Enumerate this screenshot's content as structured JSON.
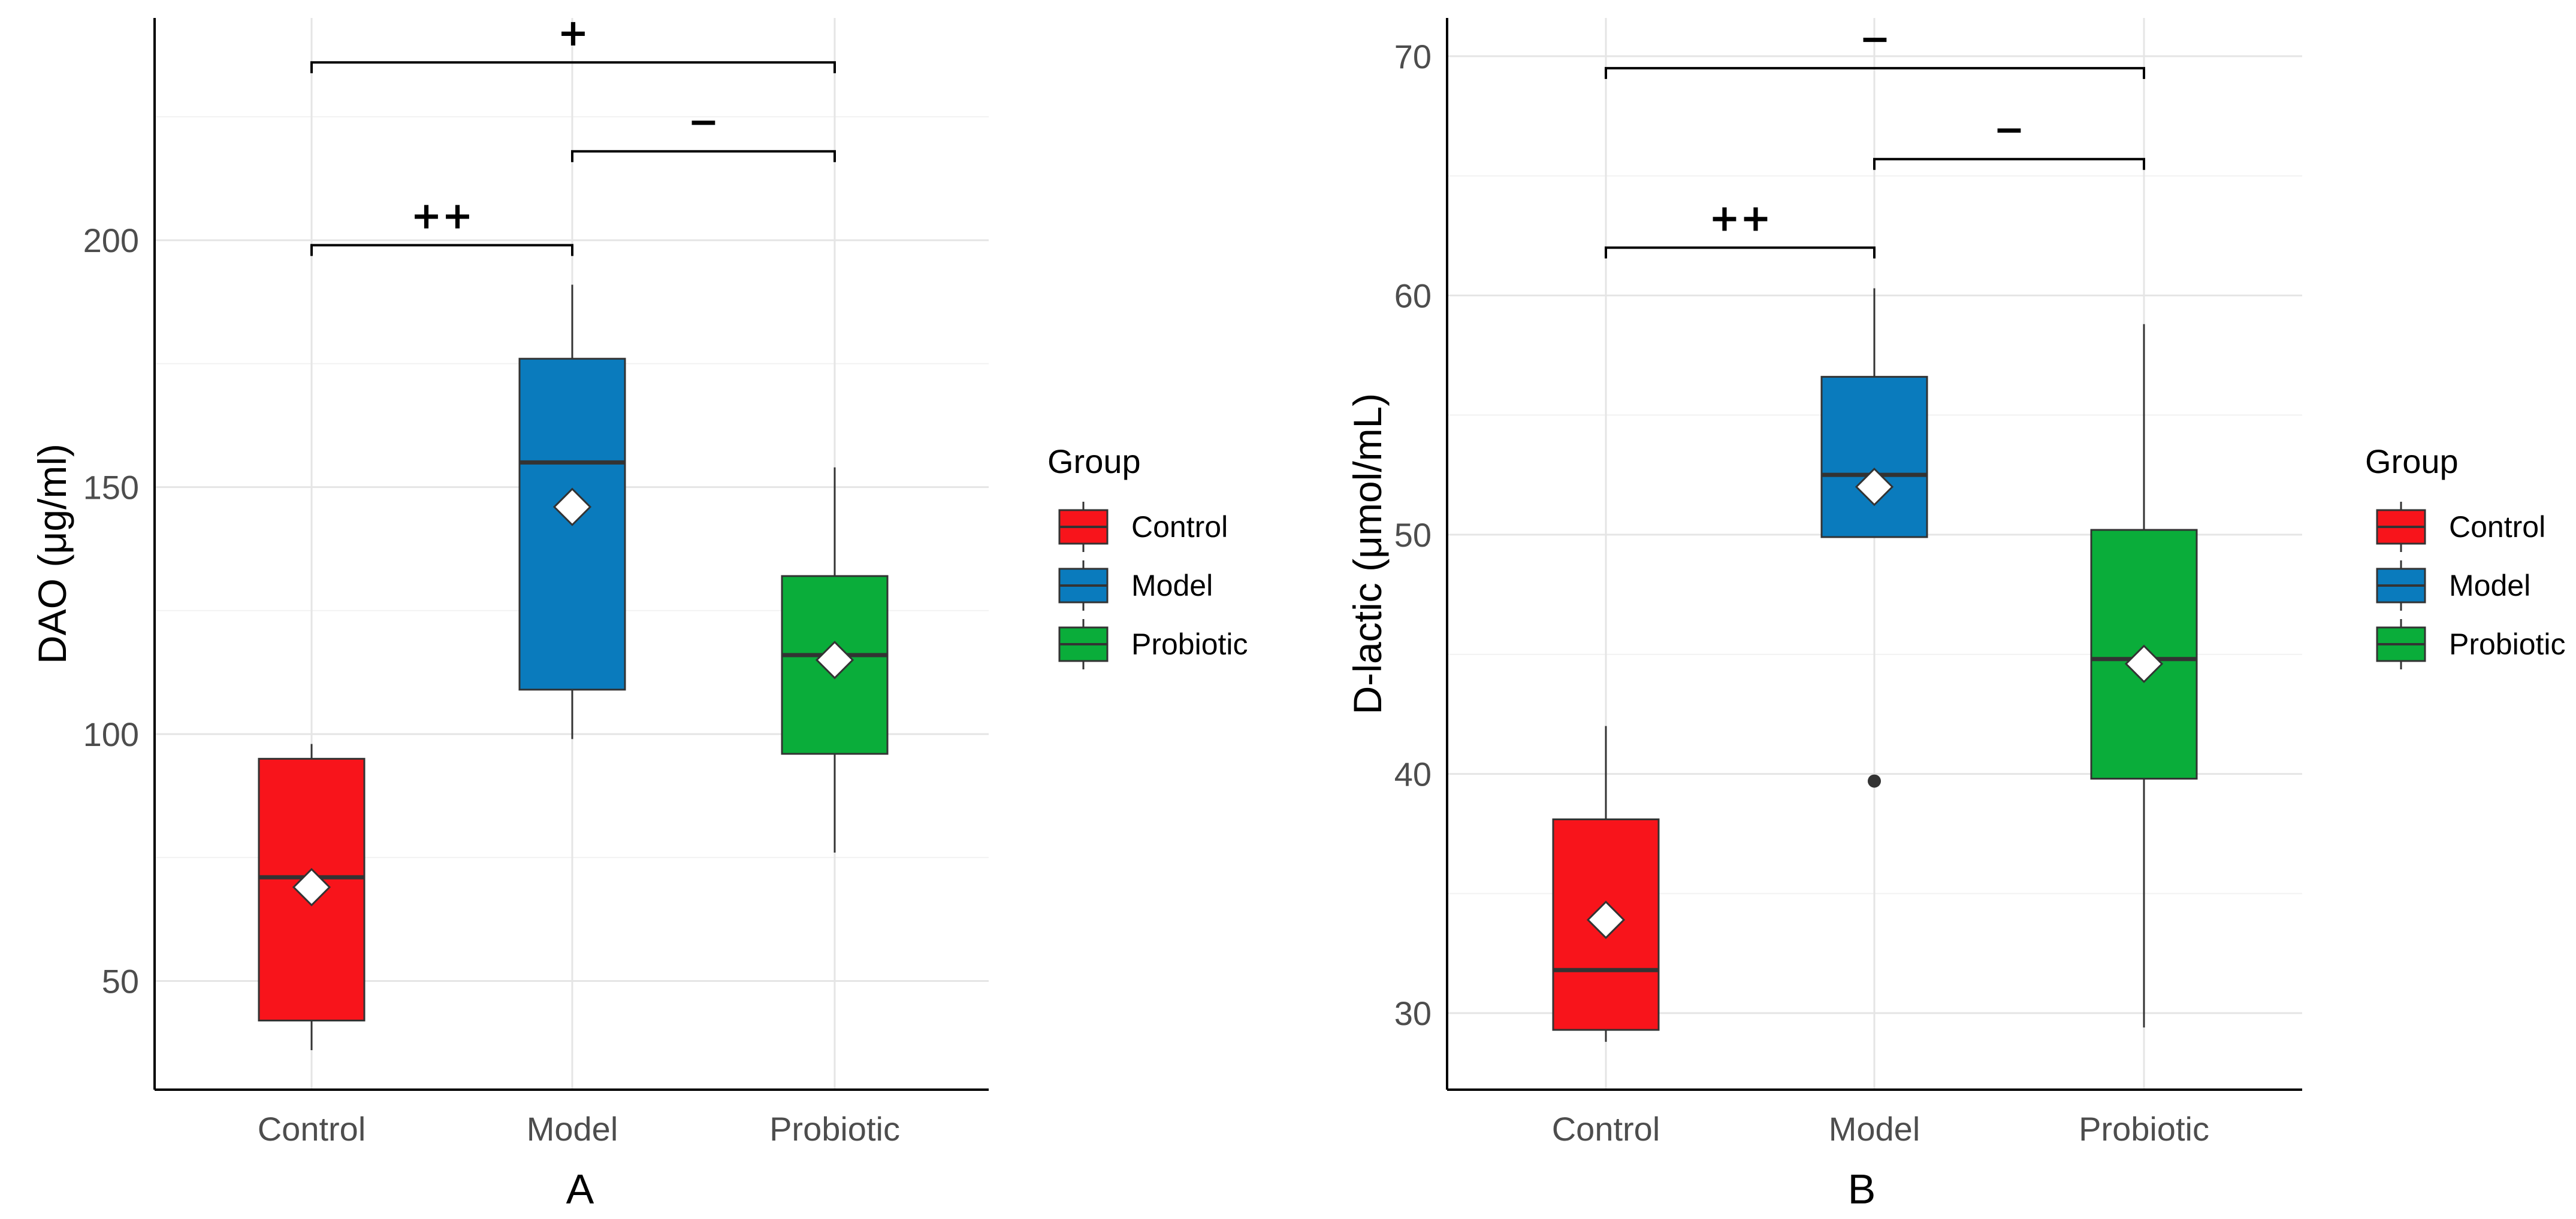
{
  "chart_data": [
    {
      "type": "box",
      "panel_label": "A",
      "ylabel": "DAO  (μg/ml)",
      "xlabel": "",
      "ylim": [
        28,
        245
      ],
      "yticks": [
        50,
        100,
        150,
        200
      ],
      "grid": true,
      "categories": [
        "Control",
        "Model",
        "Probiotic"
      ],
      "boxes": [
        {
          "group": "Control",
          "whisker_low": 36,
          "q1": 42,
          "median": 71,
          "q3": 95,
          "whisker_high": 98,
          "mean": 69,
          "outliers": []
        },
        {
          "group": "Model",
          "whisker_low": 99,
          "q1": 109,
          "median": 155,
          "q3": 176,
          "whisker_high": 191,
          "mean": 146,
          "outliers": []
        },
        {
          "group": "Probiotic",
          "whisker_low": 76,
          "q1": 96,
          "median": 116,
          "q3": 132,
          "whisker_high": 154,
          "mean": 115,
          "outliers": []
        }
      ],
      "significance": [
        {
          "from": "Control",
          "to": "Model",
          "y": 199,
          "label": "++"
        },
        {
          "from": "Model",
          "to": "Probiotic",
          "y": 218,
          "label": "−"
        },
        {
          "from": "Control",
          "to": "Probiotic",
          "y": 236,
          "label": "+"
        }
      ]
    },
    {
      "type": "box",
      "panel_label": "B",
      "ylabel": "D-lactic  (μmol/mL)",
      "xlabel": "",
      "ylim": [
        26.8,
        71.6
      ],
      "yticks": [
        30,
        40,
        50,
        60,
        70
      ],
      "grid": true,
      "categories": [
        "Control",
        "Model",
        "Probiotic"
      ],
      "boxes": [
        {
          "group": "Control",
          "whisker_low": 28.8,
          "q1": 29.3,
          "median": 31.8,
          "q3": 38.1,
          "whisker_high": 42.0,
          "mean": 33.9,
          "outliers": []
        },
        {
          "group": "Model",
          "whisker_low": 49.9,
          "q1": 49.9,
          "median": 52.5,
          "q3": 56.6,
          "whisker_high": 60.3,
          "mean": 52.0,
          "outliers": [
            39.7
          ]
        },
        {
          "group": "Probiotic",
          "whisker_low": 29.4,
          "q1": 39.8,
          "median": 44.8,
          "q3": 50.2,
          "whisker_high": 58.8,
          "mean": 44.6,
          "outliers": []
        }
      ],
      "significance": [
        {
          "from": "Control",
          "to": "Model",
          "y": 62.0,
          "label": "++"
        },
        {
          "from": "Model",
          "to": "Probiotic",
          "y": 65.7,
          "label": "−"
        },
        {
          "from": "Control",
          "to": "Probiotic",
          "y": 69.5,
          "label": "−"
        }
      ]
    }
  ],
  "legend": {
    "title": "Group",
    "items": [
      {
        "label": "Control",
        "color": "#f8141b"
      },
      {
        "label": "Model",
        "color": "#0a7bbd"
      },
      {
        "label": "Probiotic",
        "color": "#0aad3a"
      }
    ]
  }
}
